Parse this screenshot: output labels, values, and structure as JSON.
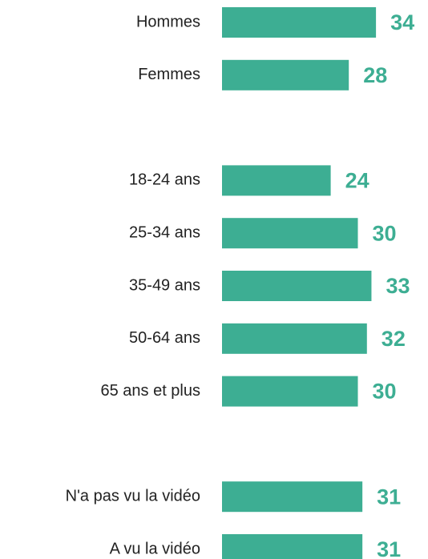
{
  "chart_data": {
    "type": "bar",
    "orientation": "horizontal",
    "categories": [
      "Hommes",
      "Femmes",
      null,
      "18-24 ans",
      "25-34 ans",
      "35-49 ans",
      "50-64 ans",
      "65 ans et plus",
      null,
      "N'a pas vu la vidéo",
      "A vu la vidéo"
    ],
    "values": [
      34,
      28,
      null,
      24,
      30,
      33,
      32,
      30,
      null,
      31,
      31
    ],
    "color": "#3dae93"
  }
}
